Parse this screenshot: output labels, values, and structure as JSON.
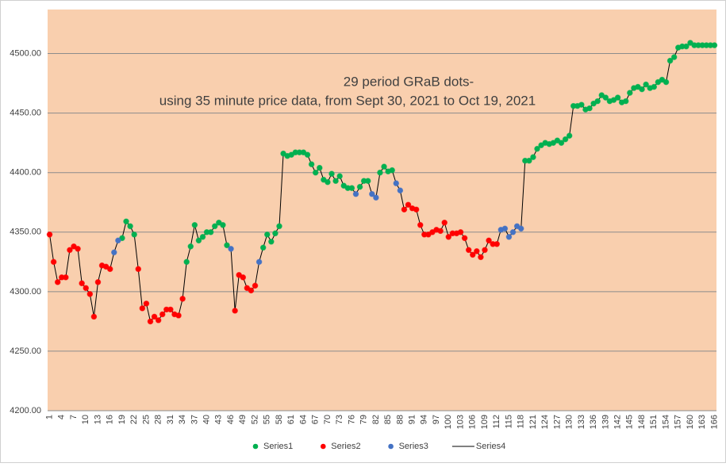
{
  "chart_data": {
    "type": "line",
    "title": "29 period GRaB dots-",
    "subtitle": "using 35 minute price data, from Sept 30, 2021 to Oct 19, 2021",
    "categories": [
      1,
      null,
      null,
      4,
      null,
      null,
      7,
      null,
      null,
      10,
      null,
      null,
      13,
      null,
      null,
      16,
      null,
      null,
      19,
      null,
      null,
      22,
      null,
      null,
      25,
      null,
      null,
      28,
      null,
      null,
      31,
      null,
      null,
      34,
      null,
      null,
      37,
      null,
      null,
      40,
      null,
      null,
      43,
      null,
      null,
      46,
      null,
      null,
      49,
      null,
      null,
      52,
      null,
      null,
      55,
      null,
      null,
      58,
      null,
      null,
      61,
      null,
      null,
      64,
      null,
      null,
      67,
      null,
      null,
      70,
      null,
      null,
      73,
      null,
      null,
      76,
      null,
      null,
      79,
      null,
      null,
      82,
      null,
      null,
      85,
      null,
      null,
      88,
      null,
      null,
      91,
      null,
      null,
      94,
      null,
      null,
      97,
      null,
      null,
      100,
      null,
      null,
      103,
      null,
      null,
      106,
      null,
      null,
      109,
      null,
      null,
      112,
      null,
      null,
      115,
      null,
      null,
      118,
      null,
      null,
      121,
      null,
      null,
      124,
      null,
      null,
      127,
      null,
      null,
      130,
      null,
      null,
      133,
      null,
      null,
      136,
      null,
      null,
      139,
      null,
      null,
      142,
      null,
      null,
      145,
      null,
      null,
      148,
      null,
      null,
      151,
      null,
      null,
      154,
      null,
      null,
      157,
      null,
      null,
      160,
      null,
      null,
      163,
      null,
      null,
      166
    ],
    "ylim": [
      4200,
      4537
    ],
    "yticks": [
      {
        "value": 4200,
        "label": "4200.00"
      },
      {
        "value": 4250,
        "label": "4250.00"
      },
      {
        "value": 4300,
        "label": "4300.00"
      },
      {
        "value": 4350,
        "label": "4350.00"
      },
      {
        "value": 4400,
        "label": "4400.00"
      },
      {
        "value": 4450,
        "label": "4450.00"
      },
      {
        "value": 4500,
        "label": "4500.00"
      }
    ],
    "grid": true,
    "legend": "bottom",
    "series": [
      {
        "name": "Series1",
        "color": "#00B050",
        "style": "markers",
        "values": [
          null,
          null,
          null,
          null,
          null,
          null,
          null,
          null,
          null,
          null,
          null,
          null,
          null,
          null,
          null,
          null,
          null,
          null,
          4345,
          4359,
          4355,
          4348,
          null,
          null,
          null,
          null,
          null,
          null,
          null,
          null,
          null,
          null,
          null,
          null,
          4325,
          4338,
          4356,
          4343,
          4346,
          4350,
          4350,
          4355,
          4358,
          4356,
          4339,
          null,
          null,
          null,
          null,
          null,
          null,
          null,
          null,
          4337,
          4348,
          4342,
          4349,
          4355,
          4416,
          4414,
          4415,
          4417,
          4417,
          4417,
          4415,
          4407,
          4400,
          4404,
          4394,
          4392,
          4399,
          4393,
          4397,
          4389,
          4387,
          4387,
          null,
          4388,
          4393,
          4393,
          null,
          null,
          4400,
          4405,
          4401,
          4402,
          null,
          null,
          null,
          null,
          null,
          null,
          null,
          null,
          null,
          null,
          null,
          null,
          null,
          null,
          null,
          null,
          null,
          null,
          null,
          null,
          null,
          null,
          null,
          null,
          null,
          null,
          null,
          null,
          null,
          null,
          null,
          null,
          4410,
          4410,
          4413,
          4420,
          4423,
          4425,
          4424,
          4425,
          4427,
          4425,
          4428,
          4431,
          4456,
          4456,
          4457,
          4453,
          4454,
          4458,
          4460,
          4465,
          4463,
          4460,
          4461,
          4463,
          4459,
          4460,
          4467,
          4471,
          4472,
          4470,
          4474,
          4471,
          4472,
          4476,
          4478,
          4476,
          4494,
          4497,
          4505,
          4506,
          4506,
          4509,
          4507,
          4507,
          4507,
          4507,
          4507,
          4507
        ]
      },
      {
        "name": "Series2",
        "color": "#FF0000",
        "style": "markers",
        "values": [
          4348,
          4325,
          4308,
          4312,
          4312,
          4335,
          4338,
          4336,
          4307,
          4303,
          4298,
          4279,
          4308,
          4322,
          4321,
          4319,
          null,
          null,
          null,
          null,
          null,
          null,
          4319,
          4286,
          4290,
          4275,
          4279,
          4276,
          4281,
          4285,
          4285,
          4281,
          4280,
          4294,
          null,
          null,
          null,
          null,
          null,
          null,
          null,
          null,
          null,
          null,
          null,
          null,
          4284,
          4314,
          4312,
          4303,
          4301,
          4305,
          null,
          null,
          null,
          null,
          null,
          null,
          null,
          null,
          null,
          null,
          null,
          null,
          null,
          null,
          null,
          null,
          null,
          null,
          null,
          null,
          null,
          null,
          null,
          null,
          null,
          null,
          null,
          null,
          null,
          null,
          null,
          null,
          null,
          null,
          null,
          null,
          4369,
          4373,
          4370,
          4369,
          4356,
          4348,
          4348,
          4350,
          4352,
          4351,
          4358,
          4346,
          4349,
          4349,
          4350,
          4345,
          4335,
          4331,
          4334,
          4329,
          4335,
          4343,
          4340,
          4340,
          null,
          null,
          null,
          null,
          null,
          null,
          null,
          null,
          null,
          null,
          null,
          null,
          null,
          null,
          null,
          null,
          null,
          null,
          null,
          null,
          null,
          null,
          null,
          null,
          null,
          null,
          null,
          null,
          null,
          null,
          null,
          null,
          null,
          null,
          null,
          null,
          null,
          null,
          null,
          null,
          null,
          null,
          null,
          null,
          null,
          null,
          null,
          null,
          null,
          null,
          null,
          null,
          null,
          null
        ]
      },
      {
        "name": "Series3",
        "color": "#4472C4",
        "style": "markers",
        "values": [
          null,
          null,
          null,
          null,
          null,
          null,
          null,
          null,
          null,
          null,
          null,
          null,
          null,
          null,
          null,
          null,
          4333,
          4343,
          null,
          null,
          null,
          null,
          null,
          null,
          null,
          null,
          null,
          null,
          null,
          null,
          null,
          null,
          null,
          null,
          null,
          null,
          null,
          null,
          null,
          null,
          null,
          null,
          null,
          null,
          null,
          4336,
          null,
          null,
          null,
          null,
          null,
          null,
          4325,
          null,
          null,
          null,
          null,
          null,
          null,
          null,
          null,
          null,
          null,
          null,
          null,
          null,
          null,
          null,
          null,
          null,
          null,
          null,
          null,
          null,
          null,
          null,
          4382,
          null,
          null,
          null,
          4382,
          4379,
          null,
          null,
          null,
          null,
          4391,
          4385,
          null,
          null,
          null,
          null,
          null,
          null,
          null,
          null,
          null,
          null,
          null,
          null,
          null,
          null,
          null,
          null,
          null,
          null,
          null,
          null,
          null,
          null,
          null,
          null,
          4352,
          4353,
          4346,
          4350,
          4355,
          4353,
          null,
          null,
          null,
          null,
          null,
          null,
          null,
          null,
          null,
          null,
          null,
          null,
          null,
          null,
          null,
          null,
          null,
          null,
          null,
          null,
          null,
          null,
          null,
          null,
          null,
          null,
          null,
          null,
          null,
          null,
          null,
          null,
          null,
          null,
          null,
          null,
          null,
          null,
          null,
          null,
          null,
          null,
          null,
          null,
          null,
          null,
          null,
          null
        ]
      },
      {
        "name": "Series4",
        "color": "#000000",
        "style": "line",
        "values": [
          4348,
          4325,
          4308,
          4312,
          4312,
          4335,
          4338,
          4336,
          4307,
          4303,
          4298,
          4279,
          4308,
          4322,
          4321,
          4319,
          4333,
          4343,
          4345,
          4359,
          4355,
          4348,
          4319,
          4286,
          4290,
          4275,
          4279,
          4276,
          4281,
          4285,
          4285,
          4281,
          4280,
          4294,
          4325,
          4338,
          4356,
          4343,
          4346,
          4350,
          4350,
          4355,
          4358,
          4356,
          4339,
          4336,
          4284,
          4314,
          4312,
          4303,
          4301,
          4305,
          4325,
          4337,
          4348,
          4342,
          4349,
          4355,
          4416,
          4414,
          4415,
          4417,
          4417,
          4417,
          4415,
          4407,
          4400,
          4404,
          4394,
          4392,
          4399,
          4393,
          4397,
          4389,
          4387,
          4387,
          4382,
          4388,
          4393,
          4393,
          4382,
          4379,
          4400,
          4405,
          4401,
          4402,
          4391,
          4385,
          4369,
          4373,
          4370,
          4369,
          4356,
          4348,
          4348,
          4350,
          4352,
          4351,
          4358,
          4346,
          4349,
          4349,
          4350,
          4345,
          4335,
          4331,
          4334,
          4329,
          4335,
          4343,
          4340,
          4340,
          4352,
          4353,
          4346,
          4350,
          4355,
          4353,
          4410,
          4410,
          4413,
          4420,
          4423,
          4425,
          4424,
          4425,
          4427,
          4425,
          4428,
          4431,
          4456,
          4456,
          4457,
          4453,
          4454,
          4458,
          4460,
          4465,
          4463,
          4460,
          4461,
          4463,
          4459,
          4460,
          4467,
          4471,
          4472,
          4470,
          4474,
          4471,
          4472,
          4476,
          4478,
          4476,
          4494,
          4497,
          4505,
          4506,
          4506,
          4509,
          4507,
          4507,
          4507,
          4507,
          4507,
          4507
        ]
      }
    ]
  }
}
